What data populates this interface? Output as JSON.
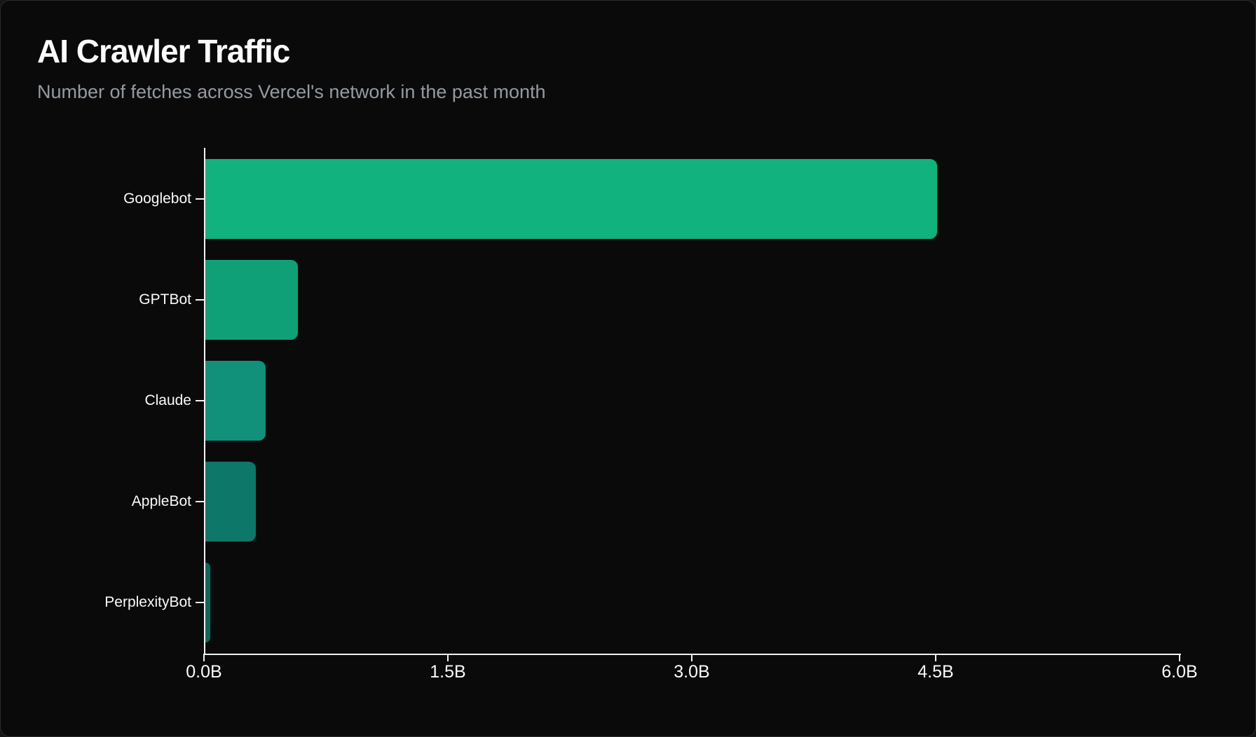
{
  "header": {
    "title": "AI Crawler Traffic",
    "subtitle": "Number of fetches across Vercel's network in the past month"
  },
  "chart_data": {
    "type": "bar",
    "orientation": "horizontal",
    "title": "AI Crawler Traffic",
    "subtitle": "Number of fetches across Vercel's network in the past month",
    "categories": [
      "Googlebot",
      "GPTBot",
      "Claude",
      "AppleBot",
      "PerplexityBot"
    ],
    "values": [
      4.5,
      0.57,
      0.37,
      0.31,
      0.03
    ],
    "unit": "billions of fetches",
    "xlim": [
      0,
      6
    ],
    "x_tick_values": [
      0,
      1.5,
      3.0,
      4.5,
      6.0
    ],
    "x_tick_labels": [
      "0.0B",
      "1.5B",
      "3.0B",
      "4.5B",
      "6.0B"
    ],
    "grid": false,
    "legend": false,
    "bar_colors": [
      "#12b27e",
      "#10a077",
      "#11907a",
      "#0d7769",
      "#0c695c"
    ],
    "axis_color": "#f2f2f2",
    "tick_label_color": "#fafafa",
    "category_label_color": "#fafafa"
  },
  "colors": {
    "page_bg": "#161616",
    "card_bg": "#0a0a0b",
    "card_border": "#2c2c2e",
    "title_text": "#fcfcfc",
    "subtitle_text": "#949ba0"
  }
}
